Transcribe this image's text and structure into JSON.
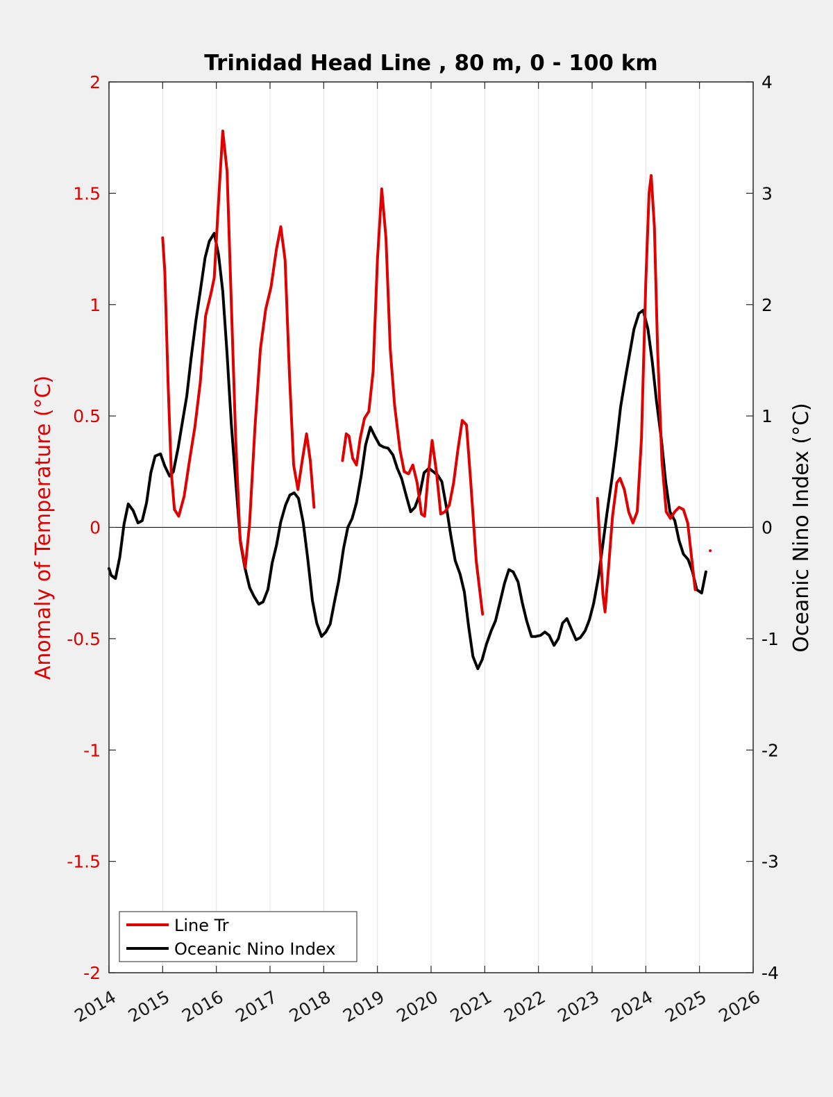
{
  "chart_data": {
    "type": "line",
    "title": "Trinidad Head Line , 80 m, 0 - 100 km",
    "ylabel_left": "Anomaly of Temperature (°C)",
    "ylabel_right": "Oceanic Nino Index (°C)",
    "xlim": [
      2014,
      2026
    ],
    "ylim_left": [
      -2,
      2
    ],
    "ylim_right": [
      -4,
      4
    ],
    "x_ticks": [
      "2014",
      "2015",
      "2016",
      "2017",
      "2018",
      "2019",
      "2020",
      "2021",
      "2022",
      "2023",
      "2024",
      "2025",
      "2026"
    ],
    "y_ticks_left": [
      "-2",
      "-1.5",
      "-1",
      "-0.5",
      "0",
      "0.5",
      "1",
      "1.5",
      "2"
    ],
    "y_ticks_right": [
      "-4",
      "-3",
      "-2",
      "-1",
      "0",
      "1",
      "2",
      "3",
      "4"
    ],
    "grid": "vertical",
    "legend_position": "bottom-left",
    "colors": {
      "line_tr": "#e00000",
      "oni": "#000000"
    },
    "series": [
      {
        "name": "Line Tr",
        "axis": "left",
        "segments": [
          [
            [
              2015.0,
              1.3
            ],
            [
              2015.04,
              1.15
            ],
            [
              2015.1,
              0.65
            ],
            [
              2015.16,
              0.25
            ],
            [
              2015.22,
              0.08
            ],
            [
              2015.3,
              0.05
            ],
            [
              2015.4,
              0.14
            ],
            [
              2015.5,
              0.3
            ],
            [
              2015.6,
              0.45
            ],
            [
              2015.7,
              0.65
            ],
            [
              2015.8,
              0.95
            ],
            [
              2015.9,
              1.05
            ],
            [
              2015.96,
              1.12
            ],
            [
              2016.05,
              1.5
            ],
            [
              2016.12,
              1.78
            ],
            [
              2016.2,
              1.6
            ],
            [
              2016.28,
              1.0
            ],
            [
              2016.36,
              0.4
            ],
            [
              2016.44,
              -0.05
            ],
            [
              2016.54,
              -0.18
            ],
            [
              2016.62,
              0.02
            ],
            [
              2016.72,
              0.45
            ],
            [
              2016.82,
              0.8
            ],
            [
              2016.92,
              0.98
            ],
            [
              2017.02,
              1.08
            ],
            [
              2017.12,
              1.25
            ],
            [
              2017.2,
              1.35
            ],
            [
              2017.28,
              1.2
            ],
            [
              2017.36,
              0.7
            ],
            [
              2017.44,
              0.28
            ],
            [
              2017.52,
              0.17
            ],
            [
              2017.6,
              0.3
            ],
            [
              2017.68,
              0.42
            ],
            [
              2017.75,
              0.3
            ],
            [
              2017.82,
              0.09
            ]
          ],
          [
            [
              2018.35,
              0.3
            ],
            [
              2018.42,
              0.42
            ],
            [
              2018.47,
              0.41
            ],
            [
              2018.54,
              0.31
            ],
            [
              2018.61,
              0.28
            ],
            [
              2018.68,
              0.4
            ],
            [
              2018.76,
              0.49
            ],
            [
              2018.84,
              0.52
            ],
            [
              2018.92,
              0.7
            ],
            [
              2019.0,
              1.2
            ],
            [
              2019.08,
              1.52
            ],
            [
              2019.16,
              1.3
            ],
            [
              2019.24,
              0.8
            ],
            [
              2019.32,
              0.55
            ],
            [
              2019.42,
              0.35
            ],
            [
              2019.5,
              0.25
            ],
            [
              2019.58,
              0.24
            ],
            [
              2019.66,
              0.28
            ],
            [
              2019.74,
              0.2
            ],
            [
              2019.82,
              0.06
            ],
            [
              2019.88,
              0.05
            ],
            [
              2019.94,
              0.22
            ],
            [
              2020.02,
              0.39
            ],
            [
              2020.1,
              0.25
            ],
            [
              2020.18,
              0.06
            ],
            [
              2020.26,
              0.07
            ],
            [
              2020.34,
              0.1
            ],
            [
              2020.42,
              0.2
            ],
            [
              2020.5,
              0.35
            ],
            [
              2020.58,
              0.48
            ],
            [
              2020.66,
              0.46
            ],
            [
              2020.74,
              0.2
            ],
            [
              2020.84,
              -0.15
            ],
            [
              2020.96,
              -0.39
            ]
          ],
          [
            [
              2023.1,
              0.13
            ],
            [
              2023.14,
              -0.05
            ],
            [
              2023.2,
              -0.3
            ],
            [
              2023.24,
              -0.38
            ],
            [
              2023.3,
              -0.2
            ],
            [
              2023.38,
              0.05
            ],
            [
              2023.46,
              0.2
            ],
            [
              2023.52,
              0.22
            ],
            [
              2023.6,
              0.17
            ],
            [
              2023.68,
              0.07
            ],
            [
              2023.76,
              0.02
            ],
            [
              2023.84,
              0.07
            ],
            [
              2023.92,
              0.4
            ],
            [
              2024.0,
              1.1
            ],
            [
              2024.06,
              1.5
            ],
            [
              2024.1,
              1.58
            ],
            [
              2024.16,
              1.35
            ],
            [
              2024.22,
              0.8
            ],
            [
              2024.3,
              0.3
            ],
            [
              2024.38,
              0.07
            ],
            [
              2024.46,
              0.04
            ],
            [
              2024.54,
              0.07
            ],
            [
              2024.62,
              0.09
            ],
            [
              2024.7,
              0.08
            ],
            [
              2024.78,
              0.02
            ],
            [
              2024.86,
              -0.15
            ],
            [
              2024.92,
              -0.28
            ]
          ],
          [
            [
              2025.2,
              -0.105
            ]
          ]
        ]
      },
      {
        "name": "Oceanic Nino Index",
        "axis": "right",
        "segments": [
          [
            [
              2014.0,
              -0.37
            ],
            [
              2014.04,
              -0.43
            ],
            [
              2014.12,
              -0.46
            ],
            [
              2014.2,
              -0.27
            ],
            [
              2014.28,
              0.03
            ],
            [
              2014.36,
              0.21
            ],
            [
              2014.45,
              0.15
            ],
            [
              2014.54,
              0.04
            ],
            [
              2014.62,
              0.06
            ],
            [
              2014.7,
              0.22
            ],
            [
              2014.78,
              0.49
            ],
            [
              2014.86,
              0.64
            ],
            [
              2014.96,
              0.66
            ],
            [
              2015.04,
              0.55
            ],
            [
              2015.13,
              0.46
            ],
            [
              2015.2,
              0.5
            ],
            [
              2015.29,
              0.72
            ],
            [
              2015.37,
              0.95
            ],
            [
              2015.45,
              1.18
            ],
            [
              2015.53,
              1.52
            ],
            [
              2015.62,
              1.86
            ],
            [
              2015.7,
              2.12
            ],
            [
              2015.79,
              2.42
            ],
            [
              2015.87,
              2.57
            ],
            [
              2015.96,
              2.64
            ],
            [
              2016.04,
              2.45
            ],
            [
              2016.12,
              2.12
            ],
            [
              2016.2,
              1.56
            ],
            [
              2016.28,
              0.92
            ],
            [
              2016.36,
              0.42
            ],
            [
              2016.45,
              -0.14
            ],
            [
              2016.53,
              -0.36
            ],
            [
              2016.62,
              -0.54
            ],
            [
              2016.7,
              -0.62
            ],
            [
              2016.79,
              -0.69
            ],
            [
              2016.87,
              -0.67
            ],
            [
              2016.96,
              -0.56
            ],
            [
              2017.04,
              -0.32
            ],
            [
              2017.12,
              -0.16
            ],
            [
              2017.2,
              0.05
            ],
            [
              2017.29,
              0.2
            ],
            [
              2017.37,
              0.29
            ],
            [
              2017.45,
              0.31
            ],
            [
              2017.53,
              0.26
            ],
            [
              2017.62,
              0.04
            ],
            [
              2017.7,
              -0.27
            ],
            [
              2017.79,
              -0.66
            ],
            [
              2017.87,
              -0.86
            ],
            [
              2017.96,
              -0.98
            ],
            [
              2018.04,
              -0.94
            ],
            [
              2018.12,
              -0.87
            ],
            [
              2018.2,
              -0.67
            ],
            [
              2018.28,
              -0.48
            ],
            [
              2018.37,
              -0.19
            ],
            [
              2018.45,
              0.0
            ],
            [
              2018.53,
              0.08
            ],
            [
              2018.61,
              0.22
            ],
            [
              2018.7,
              0.47
            ],
            [
              2018.78,
              0.74
            ],
            [
              2018.87,
              0.9
            ],
            [
              2018.95,
              0.82
            ],
            [
              2019.04,
              0.74
            ],
            [
              2019.12,
              0.72
            ],
            [
              2019.2,
              0.71
            ],
            [
              2019.29,
              0.65
            ],
            [
              2019.37,
              0.53
            ],
            [
              2019.45,
              0.44
            ],
            [
              2019.54,
              0.28
            ],
            [
              2019.62,
              0.14
            ],
            [
              2019.7,
              0.18
            ],
            [
              2019.79,
              0.3
            ],
            [
              2019.87,
              0.49
            ],
            [
              2019.96,
              0.53
            ],
            [
              2020.04,
              0.5
            ],
            [
              2020.12,
              0.47
            ],
            [
              2020.2,
              0.41
            ],
            [
              2020.29,
              0.17
            ],
            [
              2020.37,
              -0.08
            ],
            [
              2020.45,
              -0.3
            ],
            [
              2020.54,
              -0.42
            ],
            [
              2020.62,
              -0.58
            ],
            [
              2020.7,
              -0.89
            ],
            [
              2020.78,
              -1.16
            ],
            [
              2020.87,
              -1.27
            ],
            [
              2020.95,
              -1.19
            ],
            [
              2021.03,
              -1.05
            ],
            [
              2021.12,
              -0.93
            ],
            [
              2021.2,
              -0.84
            ],
            [
              2021.28,
              -0.68
            ],
            [
              2021.37,
              -0.5
            ],
            [
              2021.45,
              -0.38
            ],
            [
              2021.53,
              -0.4
            ],
            [
              2021.62,
              -0.49
            ],
            [
              2021.7,
              -0.68
            ],
            [
              2021.78,
              -0.84
            ],
            [
              2021.87,
              -0.98
            ],
            [
              2021.95,
              -0.98
            ],
            [
              2022.04,
              -0.97
            ],
            [
              2022.12,
              -0.94
            ],
            [
              2022.2,
              -0.97
            ],
            [
              2022.29,
              -1.06
            ],
            [
              2022.37,
              -1.0
            ],
            [
              2022.45,
              -0.86
            ],
            [
              2022.53,
              -0.82
            ],
            [
              2022.62,
              -0.92
            ],
            [
              2022.7,
              -1.01
            ],
            [
              2022.78,
              -0.99
            ],
            [
              2022.87,
              -0.93
            ],
            [
              2022.95,
              -0.83
            ],
            [
              2023.03,
              -0.68
            ],
            [
              2023.12,
              -0.44
            ],
            [
              2023.2,
              -0.15
            ],
            [
              2023.28,
              0.14
            ],
            [
              2023.37,
              0.44
            ],
            [
              2023.45,
              0.74
            ],
            [
              2023.53,
              1.08
            ],
            [
              2023.62,
              1.34
            ],
            [
              2023.7,
              1.56
            ],
            [
              2023.78,
              1.78
            ],
            [
              2023.87,
              1.92
            ],
            [
              2023.95,
              1.95
            ],
            [
              2024.04,
              1.78
            ],
            [
              2024.12,
              1.49
            ],
            [
              2024.2,
              1.13
            ],
            [
              2024.29,
              0.79
            ],
            [
              2024.37,
              0.41
            ],
            [
              2024.45,
              0.14
            ],
            [
              2024.54,
              0.06
            ],
            [
              2024.62,
              -0.12
            ],
            [
              2024.7,
              -0.24
            ],
            [
              2024.79,
              -0.29
            ],
            [
              2024.87,
              -0.4
            ],
            [
              2024.95,
              -0.56
            ],
            [
              2025.04,
              -0.59
            ],
            [
              2025.12,
              -0.4
            ]
          ]
        ]
      }
    ]
  },
  "legend": {
    "items": [
      {
        "label": "Line Tr",
        "color": "#e00000"
      },
      {
        "label": "Oceanic Nino Index",
        "color": "#000000"
      }
    ]
  }
}
